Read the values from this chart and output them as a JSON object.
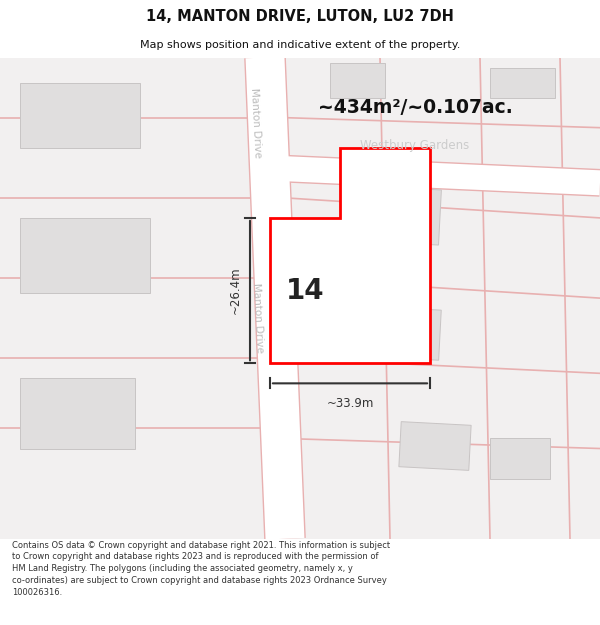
{
  "title": "14, MANTON DRIVE, LUTON, LU2 7DH",
  "subtitle": "Map shows position and indicative extent of the property.",
  "footer": "Contains OS data © Crown copyright and database right 2021. This information is subject\nto Crown copyright and database rights 2023 and is reproduced with the permission of\nHM Land Registry. The polygons (including the associated geometry, namely x, y\nco-ordinates) are subject to Crown copyright and database rights 2023 Ordnance Survey\n100026316.",
  "area_label": "~434m²/~0.107ac.",
  "street_label_manton": "Manton Drive",
  "street_label_road": "Westbury Gardens",
  "number_label": "14",
  "dim_width": "~33.9m",
  "dim_height": "~26.4m",
  "bg_map_color": "#f2f0f0",
  "road_fill": "#ffffff",
  "road_stroke": "#e8b0b0",
  "building_fill": "#e0dede",
  "building_stroke": "#c8c4c4",
  "plot_fill": "#ffffff",
  "plot_stroke": "#ff0000",
  "dim_color": "#333333",
  "text_color": "#222222",
  "street_text_color": "#cccccc",
  "title_color": "#111111",
  "footer_color": "#333333",
  "title_fontsize": 10.5,
  "subtitle_fontsize": 8.0,
  "footer_fontsize": 6.0
}
